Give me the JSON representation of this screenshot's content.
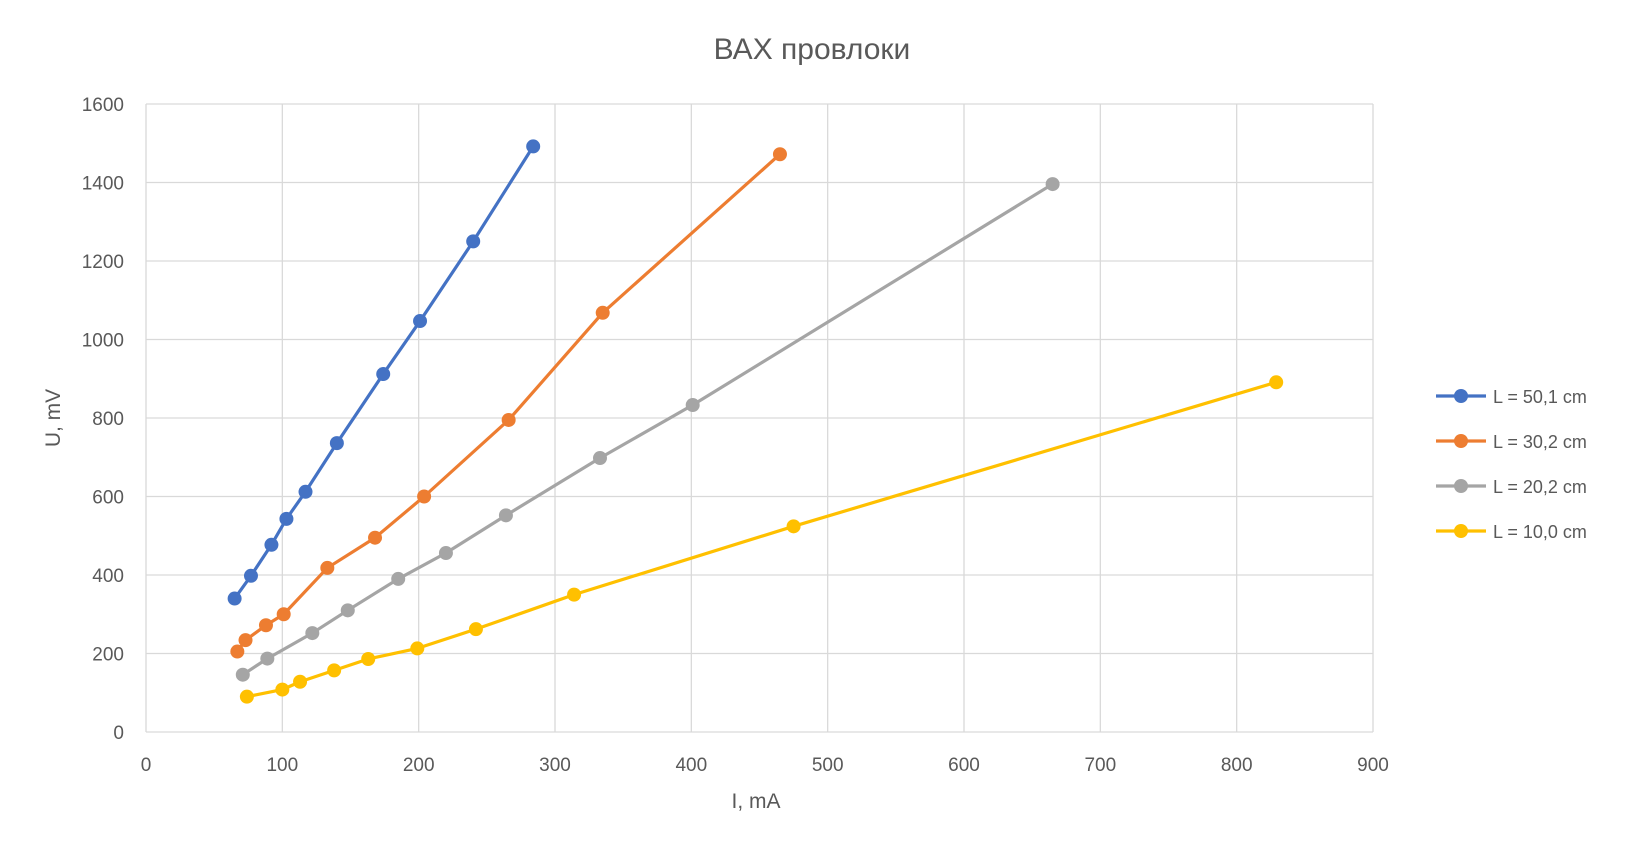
{
  "chart_data": {
    "type": "scatter",
    "title": "ВАХ провлоки",
    "xlabel": "I, mA",
    "ylabel": "U, mV",
    "xlim": [
      0,
      900
    ],
    "ylim": [
      0,
      1600
    ],
    "xticks": [
      0,
      100,
      200,
      300,
      400,
      500,
      600,
      700,
      800,
      900
    ],
    "yticks": [
      0,
      200,
      400,
      600,
      800,
      1000,
      1200,
      1400,
      1600
    ],
    "grid": true,
    "legend_position": "right",
    "series": [
      {
        "name": "L = 50,1 cm",
        "color": "#4472C4",
        "points": [
          [
            65,
            340
          ],
          [
            77,
            398
          ],
          [
            92,
            477
          ],
          [
            103,
            543
          ],
          [
            117,
            612
          ],
          [
            140,
            736
          ],
          [
            174,
            912
          ],
          [
            201,
            1047
          ],
          [
            240,
            1250
          ],
          [
            284,
            1492
          ]
        ]
      },
      {
        "name": "L = 30,2 cm",
        "color": "#ED7D31",
        "points": [
          [
            67,
            205
          ],
          [
            73,
            234
          ],
          [
            88,
            272
          ],
          [
            101,
            300
          ],
          [
            133,
            418
          ],
          [
            168,
            495
          ],
          [
            204,
            600
          ],
          [
            266,
            795
          ],
          [
            335,
            1068
          ],
          [
            465,
            1472
          ]
        ]
      },
      {
        "name": "L = 20,2 cm",
        "color": "#A5A5A5",
        "points": [
          [
            71,
            146
          ],
          [
            89,
            187
          ],
          [
            122,
            252
          ],
          [
            148,
            310
          ],
          [
            185,
            390
          ],
          [
            220,
            456
          ],
          [
            264,
            552
          ],
          [
            333,
            698
          ],
          [
            401,
            833
          ],
          [
            665,
            1396
          ]
        ]
      },
      {
        "name": "L  = 10,0 cm",
        "color": "#FFC000",
        "points": [
          [
            74,
            90
          ],
          [
            100,
            108
          ],
          [
            113,
            128
          ],
          [
            138,
            157
          ],
          [
            163,
            186
          ],
          [
            199,
            213
          ],
          [
            242,
            262
          ],
          [
            314,
            350
          ],
          [
            475,
            524
          ],
          [
            829,
            891
          ]
        ]
      }
    ]
  }
}
